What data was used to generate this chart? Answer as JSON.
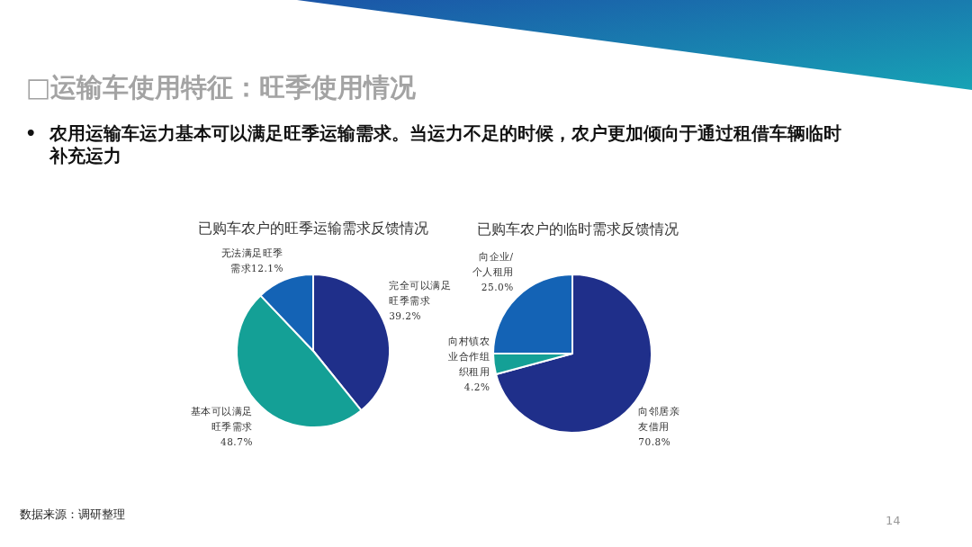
{
  "chart_data": [
    {
      "type": "other",
      "title": "□运输车使用特征：旺季使用情况",
      "subtitle": "•\t农用运输车运力基本可以满足旺季运输需求。当运力不足的时候，农户更加倾向于通过租借车辆临时补充运力",
      "annotations": [
        "数据来源：调研整理",
        "14"
      ]
    },
    {
      "type": "pie",
      "title": "已购车农户的旺季运输需求反馈情况",
      "categories": [
        "完全可以满足旺季需求",
        "基本可以满足旺季需求",
        "无法满足旺季需求"
      ],
      "values": [
        39.2,
        48.7,
        12.1
      ],
      "value_labels": [
        "39.2%",
        "48.7%",
        "12.1%"
      ],
      "colors": [
        "#1f2f8a",
        "#14a096",
        "#1463b5"
      ]
    },
    {
      "type": "pie",
      "title": "已购车农户的临时需求反馈情况",
      "categories": [
        "向邻居亲友借用",
        "向村镇农业合作组织租用",
        "向企业/个人租用"
      ],
      "values": [
        70.8,
        4.2,
        25.0
      ],
      "value_labels": [
        "70.8%",
        "4.2%",
        "25.0%"
      ],
      "colors": [
        "#1f2f8a",
        "#14a096",
        "#1463b5"
      ]
    }
  ]
}
